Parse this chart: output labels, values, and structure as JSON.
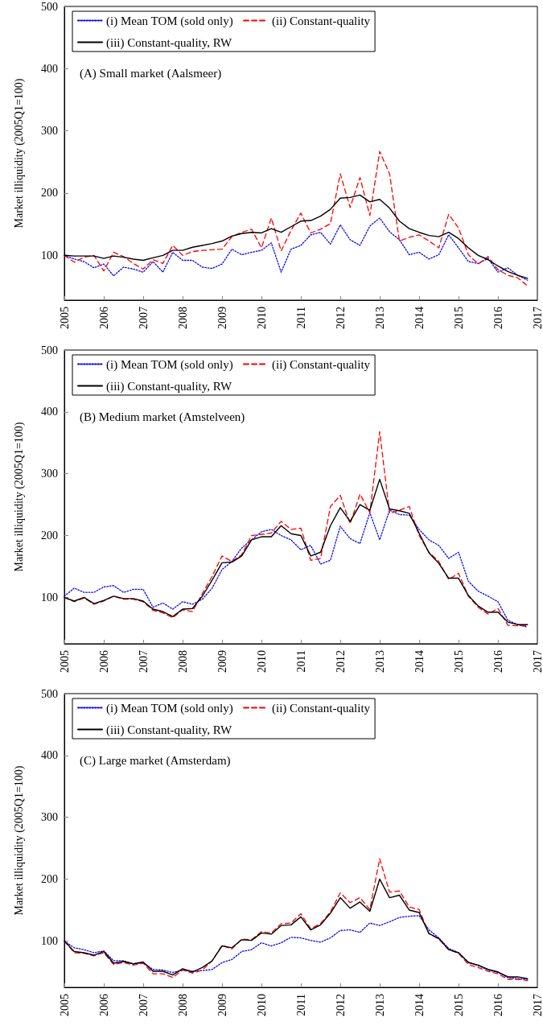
{
  "chart_data": [
    {
      "type": "line",
      "title": "(A) Small market (Aalsmeer)",
      "ylabel": "Market illiquidity (2005Q1=100)",
      "legend": "top left",
      "marker": "none",
      "grid": false,
      "xlim": [
        2005,
        2017
      ],
      "xticks": [
        2005,
        2006,
        2007,
        2008,
        2009,
        2010,
        2011,
        2012,
        2013,
        2014,
        2015,
        2016,
        2017
      ],
      "ylim": [
        28,
        500
      ],
      "yticks": [
        100,
        200,
        300,
        400,
        500
      ],
      "x": [
        2005,
        2005.25,
        2005.5,
        2005.75,
        2006,
        2006.25,
        2006.5,
        2006.75,
        2007,
        2007.25,
        2007.5,
        2007.75,
        2008,
        2008.25,
        2008.5,
        2008.75,
        2009,
        2009.25,
        2009.5,
        2009.75,
        2010,
        2010.25,
        2010.5,
        2010.75,
        2011,
        2011.25,
        2011.5,
        2011.75,
        2012,
        2012.25,
        2012.5,
        2012.75,
        2013,
        2013.25,
        2013.5,
        2013.75,
        2014,
        2014.25,
        2014.5,
        2014.75,
        2015,
        2015.25,
        2015.5,
        2015.75,
        2016,
        2016.25,
        2016.5,
        2016.75
      ],
      "series": [
        {
          "name": "(i) Mean TOM (sold only)",
          "color": "#0000ff",
          "line_style": "dotted",
          "values": [
            100,
            94,
            90,
            80,
            86,
            67,
            81,
            78,
            73,
            90,
            73,
            105,
            92,
            92,
            81,
            79,
            86,
            110,
            101,
            105,
            108,
            120,
            73,
            110,
            116,
            133,
            137,
            118,
            149,
            125,
            116,
            147,
            160,
            138,
            125,
            101,
            105,
            94,
            101,
            133,
            112,
            90,
            87,
            95,
            73,
            80,
            68,
            60
          ]
        },
        {
          "name": "(ii) Constant-quality",
          "color": "#ff0000",
          "line_style": "dashed",
          "values": [
            100,
            89,
            97,
            100,
            75,
            105,
            98,
            87,
            78,
            93,
            87,
            116,
            100,
            106,
            108,
            109,
            110,
            130,
            137,
            142,
            112,
            160,
            107,
            140,
            168,
            136,
            142,
            151,
            231,
            177,
            225,
            164,
            267,
            231,
            123,
            129,
            133,
            123,
            112,
            166,
            144,
            101,
            86,
            98,
            77,
            68,
            64,
            51
          ]
        },
        {
          "name": "(iii) Constant-quality, RW",
          "color": "#000000",
          "line_style": "solid",
          "values": [
            100,
            99,
            99,
            99,
            95,
            99,
            97,
            94,
            92,
            96,
            100,
            108,
            108,
            113,
            116,
            119,
            123,
            131,
            135,
            137,
            136,
            143,
            137,
            146,
            155,
            156,
            163,
            174,
            192,
            193,
            197,
            186,
            190,
            176,
            155,
            143,
            137,
            132,
            130,
            137,
            127,
            112,
            100,
            93,
            83,
            74,
            68,
            63
          ]
        }
      ]
    },
    {
      "type": "line",
      "title": "(B) Medium market (Amstelveen)",
      "ylabel": "Market illiquidity (2005Q1=100)",
      "legend": "top left",
      "marker": "none",
      "grid": false,
      "xlim": [
        2005,
        2017
      ],
      "xticks": [
        2005,
        2006,
        2007,
        2008,
        2009,
        2010,
        2011,
        2012,
        2013,
        2014,
        2015,
        2016,
        2017
      ],
      "ylim": [
        25,
        500
      ],
      "yticks": [
        100,
        200,
        300,
        400,
        500
      ],
      "x": [
        2005,
        2005.25,
        2005.5,
        2005.75,
        2006,
        2006.25,
        2006.5,
        2006.75,
        2007,
        2007.25,
        2007.5,
        2007.75,
        2008,
        2008.25,
        2008.5,
        2008.75,
        2009,
        2009.25,
        2009.5,
        2009.75,
        2010,
        2010.25,
        2010.5,
        2010.75,
        2011,
        2011.25,
        2011.5,
        2011.75,
        2012,
        2012.25,
        2012.5,
        2012.75,
        2013,
        2013.25,
        2013.5,
        2013.75,
        2014,
        2014.25,
        2014.5,
        2014.75,
        2015,
        2015.25,
        2015.5,
        2015.75,
        2016,
        2016.25,
        2016.5,
        2016.75
      ],
      "series": [
        {
          "name": "(i) Mean TOM (sold only)",
          "color": "#0000ff",
          "line_style": "dotted",
          "values": [
            102,
            115,
            108,
            108,
            117,
            119,
            108,
            113,
            113,
            84,
            91,
            81,
            93,
            89,
            97,
            115,
            145,
            158,
            180,
            193,
            206,
            210,
            200,
            193,
            177,
            184,
            154,
            160,
            215,
            195,
            187,
            237,
            193,
            241,
            234,
            233,
            210,
            193,
            184,
            163,
            173,
            126,
            110,
            102,
            93,
            63,
            56,
            52
          ]
        },
        {
          "name": "(ii) Constant-quality",
          "color": "#ff0000",
          "line_style": "dashed",
          "values": [
            100,
            93,
            99,
            89,
            94,
            102,
            97,
            97,
            93,
            79,
            75,
            67,
            80,
            77,
            106,
            134,
            167,
            158,
            169,
            200,
            202,
            204,
            223,
            210,
            212,
            160,
            163,
            247,
            265,
            219,
            267,
            237,
            368,
            236,
            241,
            247,
            200,
            173,
            158,
            129,
            139,
            102,
            84,
            73,
            82,
            55,
            54,
            54
          ]
        },
        {
          "name": "(iii) Constant-quality, RW",
          "color": "#000000",
          "line_style": "solid",
          "values": [
            100,
            94,
            100,
            90,
            95,
            102,
            98,
            98,
            94,
            81,
            77,
            69,
            81,
            82,
            102,
            128,
            156,
            157,
            167,
            193,
            198,
            198,
            216,
            203,
            200,
            167,
            173,
            216,
            245,
            223,
            250,
            241,
            291,
            243,
            240,
            236,
            204,
            172,
            155,
            131,
            131,
            103,
            86,
            76,
            76,
            60,
            56,
            56
          ]
        }
      ]
    },
    {
      "type": "line",
      "title": "(C) Large market (Amsterdam)",
      "ylabel": "Market illiquidity (2005Q1=100)",
      "legend": "top left",
      "marker": "none",
      "grid": false,
      "xlim": [
        2005,
        2017
      ],
      "xticks": [
        2005,
        2006,
        2007,
        2008,
        2009,
        2010,
        2011,
        2012,
        2013,
        2014,
        2015,
        2016,
        2017
      ],
      "ylim": [
        25,
        500
      ],
      "yticks": [
        100,
        200,
        300,
        400,
        500
      ],
      "x": [
        2005,
        2005.25,
        2005.5,
        2005.75,
        2006,
        2006.25,
        2006.5,
        2006.75,
        2007,
        2007.25,
        2007.5,
        2007.75,
        2008,
        2008.25,
        2008.5,
        2008.75,
        2009,
        2009.25,
        2009.5,
        2009.75,
        2010,
        2010.25,
        2010.5,
        2010.75,
        2011,
        2011.25,
        2011.5,
        2011.75,
        2012,
        2012.25,
        2012.5,
        2012.75,
        2013,
        2013.25,
        2013.5,
        2013.75,
        2014,
        2014.25,
        2014.5,
        2014.75,
        2015,
        2015.25,
        2015.5,
        2015.75,
        2016,
        2016.25,
        2016.5,
        2016.75
      ],
      "series": [
        {
          "name": "(i) Mean TOM (sold only)",
          "color": "#0000ff",
          "line_style": "dotted",
          "values": [
            100,
            89,
            86,
            81,
            84,
            68,
            68,
            63,
            65,
            54,
            53,
            49,
            53,
            51,
            52,
            54,
            65,
            70,
            83,
            86,
            97,
            92,
            97,
            106,
            105,
            101,
            98,
            105,
            117,
            118,
            114,
            129,
            125,
            131,
            138,
            140,
            141,
            118,
            105,
            88,
            81,
            66,
            60,
            53,
            49,
            41,
            39,
            38
          ]
        },
        {
          "name": "(ii) Constant-quality",
          "color": "#ff0000",
          "line_style": "dashed",
          "values": [
            100,
            81,
            80,
            76,
            81,
            62,
            65,
            61,
            64,
            47,
            47,
            41,
            53,
            48,
            53,
            68,
            93,
            87,
            103,
            102,
            115,
            113,
            128,
            129,
            144,
            120,
            128,
            147,
            178,
            162,
            170,
            151,
            233,
            179,
            181,
            155,
            151,
            112,
            103,
            86,
            80,
            62,
            57,
            51,
            47,
            38,
            38,
            36
          ]
        },
        {
          "name": "(iii) Constant-quality, RW",
          "color": "#000000",
          "line_style": "solid",
          "values": [
            100,
            83,
            81,
            77,
            83,
            64,
            67,
            63,
            66,
            51,
            51,
            45,
            55,
            50,
            57,
            68,
            92,
            89,
            102,
            101,
            113,
            111,
            125,
            126,
            139,
            118,
            126,
            145,
            170,
            153,
            163,
            148,
            200,
            170,
            174,
            150,
            146,
            112,
            104,
            86,
            81,
            65,
            61,
            54,
            50,
            42,
            42,
            39
          ]
        }
      ]
    }
  ]
}
